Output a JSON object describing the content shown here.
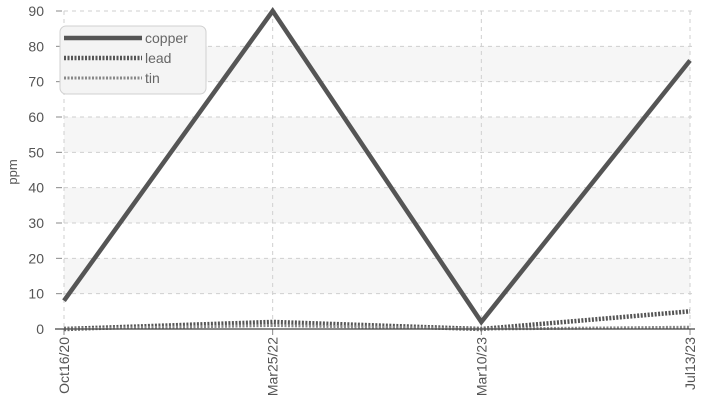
{
  "chart_data": {
    "type": "line",
    "xlabel": "",
    "ylabel": "ppm",
    "ylim": [
      0,
      90
    ],
    "yticks": [
      0,
      10,
      20,
      30,
      40,
      50,
      60,
      70,
      80,
      90
    ],
    "x": [
      "2020-10-16",
      "2022-03-25",
      "2023-03-10",
      "2023-07-13"
    ],
    "xtick_labels": [
      "Oct16/20",
      "Mar25/22",
      "Mar10/23",
      "Jul13/23"
    ],
    "series": [
      {
        "name": "copper",
        "values": [
          8,
          90,
          2,
          76
        ],
        "color": "#555555",
        "style": "solid"
      },
      {
        "name": "lead",
        "values": [
          0,
          2,
          0,
          5
        ],
        "color": "#555555",
        "style": "dotted"
      },
      {
        "name": "tin",
        "values": [
          0,
          1,
          0,
          0.5
        ],
        "color": "#888888",
        "style": "dotted"
      }
    ],
    "grid": true,
    "legend_position": "top-left",
    "background_bands": "alternating light gray"
  }
}
